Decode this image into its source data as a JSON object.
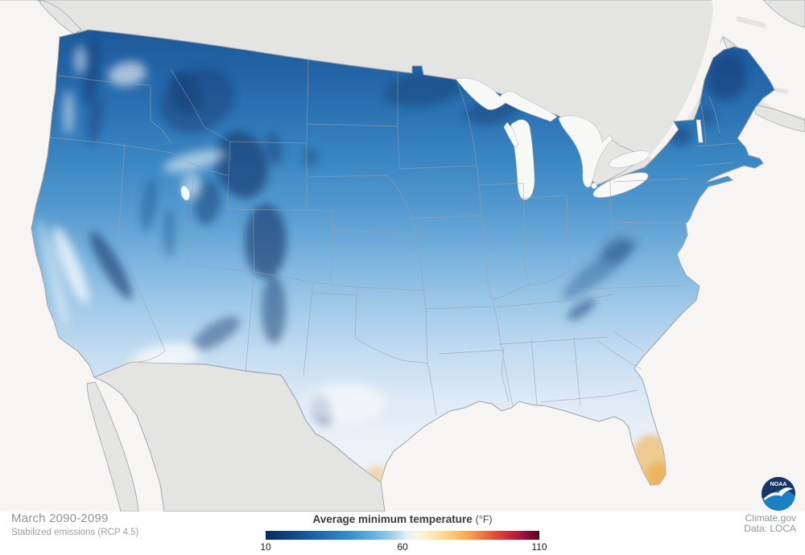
{
  "map": {
    "region_name": "contiguous-united-states",
    "neighbor_regions": [
      "canada",
      "mexico"
    ],
    "water_bodies": [
      "pacific-ocean",
      "atlantic-ocean",
      "gulf-of-mexico",
      "great-lakes"
    ]
  },
  "legend": {
    "title": "Average minimum temperature",
    "unit": "(°F)",
    "min": 10,
    "mid": 60,
    "max": 110,
    "ticks": [
      {
        "label": "10",
        "frac": 0.0
      },
      {
        "label": "60",
        "frac": 0.5
      },
      {
        "label": "110",
        "frac": 1.0
      }
    ],
    "gradient_stops": [
      [
        0,
        "#0b2b5b"
      ],
      [
        8,
        "#123f7d"
      ],
      [
        16,
        "#1d5b9d"
      ],
      [
        24,
        "#2c75b5"
      ],
      [
        32,
        "#3f92cb"
      ],
      [
        40,
        "#6fb2de"
      ],
      [
        47,
        "#abd3eb"
      ],
      [
        52,
        "#e8f1f7"
      ],
      [
        56,
        "#fbf6e0"
      ],
      [
        62,
        "#fbe3ab"
      ],
      [
        68,
        "#f9c97e"
      ],
      [
        74,
        "#f5a55b"
      ],
      [
        80,
        "#ea7145"
      ],
      [
        85,
        "#da4334"
      ],
      [
        90,
        "#c22540"
      ],
      [
        95,
        "#93123a"
      ],
      [
        100,
        "#4c0820"
      ]
    ]
  },
  "footer": {
    "period": "March 2090-2099",
    "scenario": "Stabilized emissions (RCP 4.5)"
  },
  "credits": {
    "source": "Climate.gov",
    "data": "Data: LOCA"
  },
  "logo": {
    "text": "NOAA"
  },
  "colors": {
    "ocean": "#f6f5f3",
    "neighbor_land": "#e4e4e3",
    "lake": "#f8f8f7",
    "border_country": "#9aa2a8",
    "border_state": "#98a1a8",
    "footer_text": "#8f9398",
    "footer_text2": "#9b9fa3",
    "title_text": "#3a3a3a",
    "tick_text": "#1a1a1a",
    "credit_text": "#8d959c",
    "noaa_dark": "#1a3668",
    "noaa_light": "#1b7fc4",
    "map_north": "#1d5796",
    "map_south": "#f2f5f8",
    "warm_accent": "#eec17b"
  }
}
